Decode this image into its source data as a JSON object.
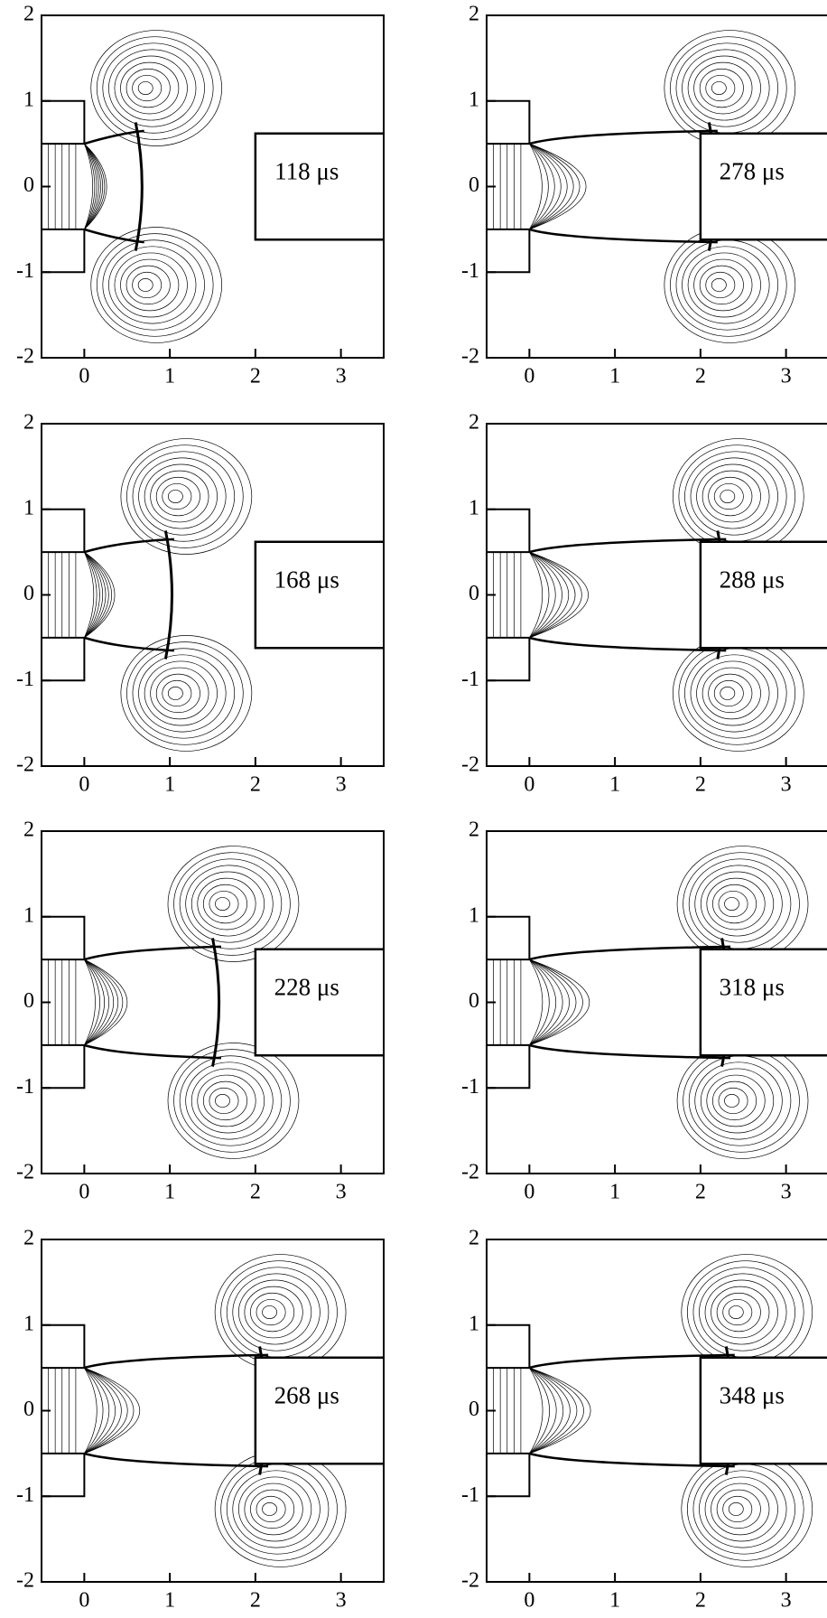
{
  "chart_data": [
    {
      "type": "contour",
      "annotation": "118 μs",
      "xlim": [
        -0.5,
        3.5
      ],
      "ylim": [
        -2,
        2
      ],
      "xticks": [
        0,
        1,
        2,
        3
      ],
      "yticks": [
        -2,
        -1,
        0,
        1,
        2
      ]
    },
    {
      "type": "contour",
      "annotation": "168 μs",
      "xlim": [
        -0.5,
        3.5
      ],
      "ylim": [
        -2,
        2
      ],
      "xticks": [
        0,
        1,
        2,
        3
      ],
      "yticks": [
        -2,
        -1,
        0,
        1,
        2
      ]
    },
    {
      "type": "contour",
      "annotation": "228 μs",
      "xlim": [
        -0.5,
        3.5
      ],
      "ylim": [
        -2,
        2
      ],
      "xticks": [
        0,
        1,
        2,
        3
      ],
      "yticks": [
        -2,
        -1,
        0,
        1,
        2
      ]
    },
    {
      "type": "contour",
      "annotation": "268 μs",
      "xlim": [
        -0.5,
        3.5
      ],
      "ylim": [
        -2,
        2
      ],
      "xticks": [
        0,
        1,
        2,
        3
      ],
      "yticks": [
        -2,
        -1,
        0,
        1,
        2
      ]
    },
    {
      "type": "contour",
      "annotation": "278 μs",
      "xlim": [
        -0.5,
        3.5
      ],
      "ylim": [
        -2,
        2
      ],
      "xticks": [
        0,
        1,
        2,
        3
      ],
      "yticks": [
        -2,
        -1,
        0,
        1,
        2
      ]
    },
    {
      "type": "contour",
      "annotation": "288 μs",
      "xlim": [
        -0.5,
        3.5
      ],
      "ylim": [
        -2,
        2
      ],
      "xticks": [
        0,
        1,
        2,
        3
      ],
      "yticks": [
        -2,
        -1,
        0,
        1,
        2
      ]
    },
    {
      "type": "contour",
      "annotation": "318 μs",
      "xlim": [
        -0.5,
        3.5
      ],
      "ylim": [
        -2,
        2
      ],
      "xticks": [
        0,
        1,
        2,
        3
      ],
      "yticks": [
        -2,
        -1,
        0,
        1,
        2
      ]
    },
    {
      "type": "contour",
      "annotation": "348 μs",
      "xlim": [
        -0.5,
        3.5
      ],
      "ylim": [
        -2,
        2
      ],
      "xticks": [
        0,
        1,
        2,
        3
      ],
      "yticks": [
        -2,
        -1,
        0,
        1,
        2
      ]
    }
  ]
}
